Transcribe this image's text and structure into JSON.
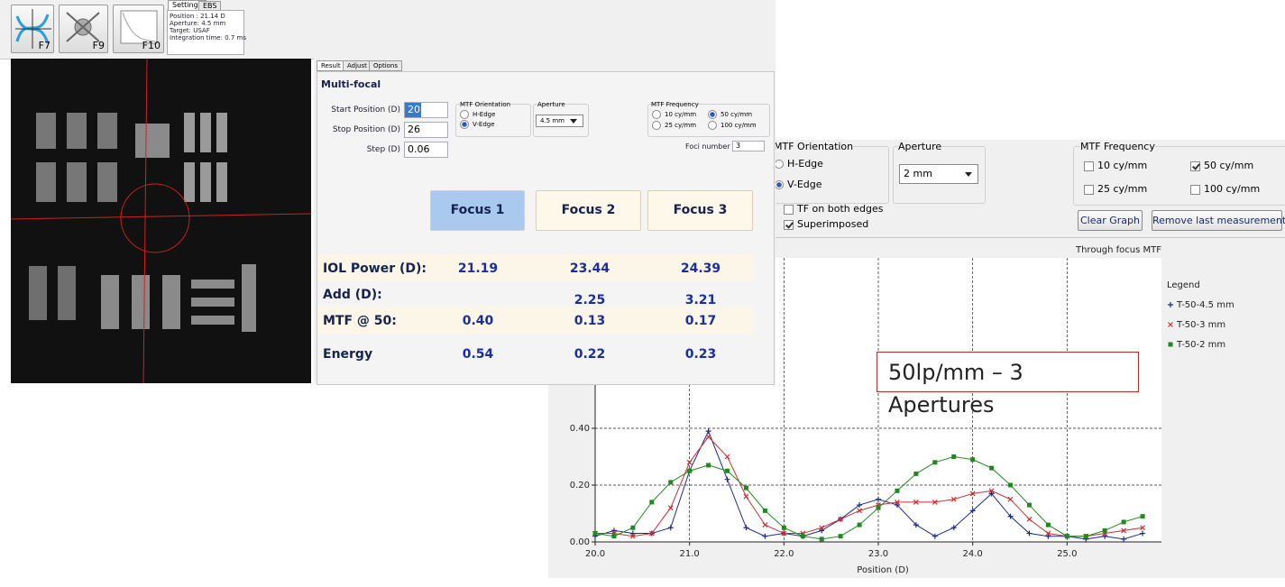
{
  "toolbar": {
    "buttons": [
      "F7",
      "F9",
      "F10"
    ],
    "tabs": [
      "Settings",
      "EBS"
    ],
    "info": [
      "Position : 21.14 D",
      "Aperture: 4.5 mm",
      "Target: USAF",
      "Integration time: 0.7 ms"
    ]
  },
  "result_panel": {
    "tabs": [
      "Result",
      "Adjust",
      "Options"
    ],
    "title": "Multi-focal",
    "fields": [
      {
        "label": "Start Position (D)",
        "value": "20"
      },
      {
        "label": "Stop Position (D)",
        "value": "26"
      },
      {
        "label": "Step (D)",
        "value": "0.06"
      }
    ],
    "orientation": {
      "title": "MTF Orientation",
      "options": [
        "H-Edge",
        "V-Edge"
      ],
      "checked": [
        1
      ]
    },
    "aperture": {
      "title": "Aperture",
      "value": "4.5 mm"
    },
    "frequency": {
      "title": "MTF Frequency",
      "options": [
        "10 cy/mm",
        "50 cy/mm",
        "25 cy/mm",
        "100 cy/mm"
      ],
      "checked": [
        1
      ]
    },
    "foci": {
      "label": "Foci number",
      "value": "3"
    },
    "focus_buttons": [
      "Focus 1",
      "Focus 2",
      "Focus 3"
    ],
    "active_focus": 0,
    "table": [
      [
        "IOL Power (D):",
        "21.19",
        "23.44",
        "24.39"
      ],
      [
        "Add (D):",
        null,
        "2.25",
        "3.21"
      ],
      [
        "MTF @ 50:",
        "0.40",
        "0.13",
        "0.17"
      ],
      [
        "Energy",
        "0.54",
        "0.22",
        "0.23"
      ]
    ]
  },
  "mtf_panel": {
    "orientation": {
      "title": "MTF Orientation",
      "options": [
        "H-Edge",
        "V-Edge"
      ],
      "checked": [
        1
      ]
    },
    "aperture": {
      "title": "Aperture",
      "value": "2 mm"
    },
    "frequency": {
      "title": "MTF Frequency",
      "options": [
        "10 cy/mm",
        "50 cy/mm",
        "25 cy/mm",
        "100 cy/mm"
      ],
      "checked": [
        1
      ]
    },
    "options": {
      "items": [
        "TF on both edges",
        "Superimposed"
      ],
      "checked": [
        1
      ]
    },
    "buttons": [
      "Clear Graph",
      "Remove last measurement"
    ]
  },
  "chart_data": {
    "type": "line",
    "title": "Through focus MTF",
    "x_label": "Position (D)",
    "x": [
      20,
      20.2,
      20.4,
      20.6,
      20.8,
      21,
      21.2,
      21.4,
      21.6,
      21.8,
      22,
      22.2,
      22.4,
      22.6,
      22.8,
      23,
      23.2,
      23.4,
      23.6,
      23.8,
      24,
      24.2,
      24.4,
      24.6,
      24.8,
      25,
      25.2,
      25.4,
      25.6,
      25.8
    ],
    "series": [
      {
        "name": "T-50-4.5 mm",
        "color": "#1c2a8c",
        "marker": "plus",
        "values": [
          0.02,
          0.04,
          0.03,
          0.03,
          0.05,
          0.25,
          0.39,
          0.22,
          0.05,
          0.02,
          0.03,
          0.02,
          0.04,
          0.08,
          0.13,
          0.15,
          0.13,
          0.06,
          0.02,
          0.05,
          0.11,
          0.17,
          0.09,
          0.03,
          0.02,
          0.02,
          0.01,
          0.02,
          0.01,
          0.03
        ]
      },
      {
        "name": "T-50-3 mm",
        "color": "#c83030",
        "marker": "x",
        "values": [
          0.03,
          0.03,
          0.02,
          0.03,
          0.12,
          0.28,
          0.37,
          0.3,
          0.16,
          0.06,
          0.03,
          0.03,
          0.05,
          0.08,
          0.11,
          0.13,
          0.14,
          0.14,
          0.14,
          0.15,
          0.17,
          0.18,
          0.15,
          0.08,
          0.03,
          0.02,
          0.02,
          0.03,
          0.04,
          0.05
        ]
      },
      {
        "name": "T-50-2 mm",
        "color": "#1e8a1e",
        "marker": "square",
        "values": [
          0.03,
          0.02,
          0.05,
          0.14,
          0.21,
          0.25,
          0.27,
          0.25,
          0.19,
          0.11,
          0.05,
          0.02,
          0.01,
          0.02,
          0.06,
          0.12,
          0.18,
          0.24,
          0.28,
          0.3,
          0.29,
          0.26,
          0.2,
          0.13,
          0.06,
          0.02,
          0.02,
          0.04,
          0.07,
          0.09
        ]
      }
    ],
    "xlim": [
      20,
      26
    ],
    "xticks": [
      {
        "value": 20,
        "label": "20.0"
      },
      {
        "value": 21,
        "label": "21.0"
      },
      {
        "value": 22,
        "label": "22.0"
      },
      {
        "value": 23,
        "label": "23.0"
      },
      {
        "value": 24,
        "label": "24.0"
      },
      {
        "value": 25,
        "label": "25.0"
      }
    ],
    "ylim": [
      0,
      1
    ],
    "yticks": [
      {
        "value": 0,
        "label": "0.00"
      },
      {
        "value": 0.2,
        "label": "0.20"
      },
      {
        "value": 0.4,
        "label": "0.40"
      }
    ],
    "grid": true,
    "legend": "right",
    "legend_title": "Legend",
    "annotation": "50lp/mm – 3 Apertures"
  }
}
